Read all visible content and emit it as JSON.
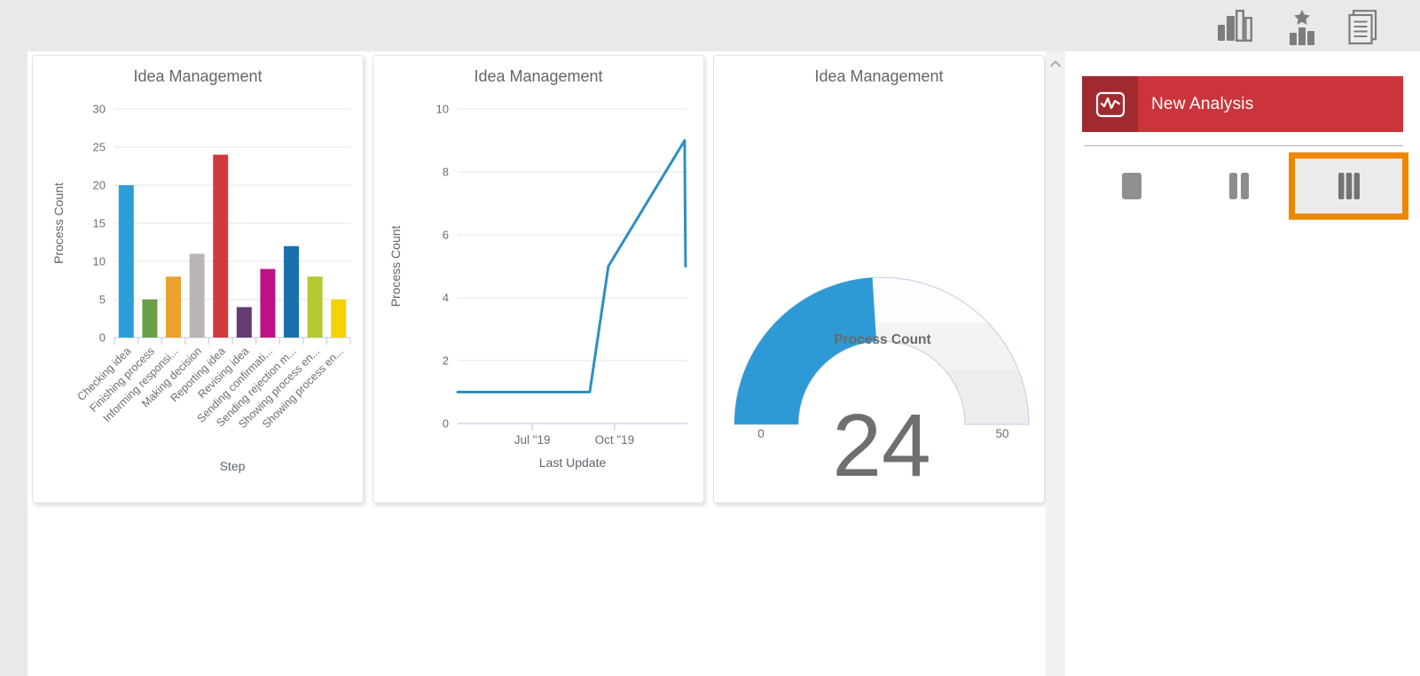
{
  "header": {
    "toolbar_icons": [
      {
        "name": "chart-columns-icon"
      },
      {
        "name": "top-rated-chart-icon"
      },
      {
        "name": "report-document-icon"
      }
    ]
  },
  "panel": {
    "new_analysis_label": "New Analysis",
    "layout_options": [
      {
        "name": "one-column",
        "selected": false
      },
      {
        "name": "two-columns",
        "selected": false
      },
      {
        "name": "three-columns",
        "selected": true
      }
    ]
  },
  "colors": {
    "page_bg": "#e9e9e9",
    "panel_bg": "#ffffff",
    "accent_red": "#cb343b",
    "accent_red_dark": "#a12a30",
    "selected_orange": "#ee8700",
    "grid": "#e5e5e5",
    "axis": "#c9cfe4",
    "tick_text": "#6e6e6e",
    "axis_title_text": "#5a6670",
    "gauge_ring": "#c9d2e8",
    "gauge_value_text": "#6f6f6f",
    "title_text": "#666666"
  },
  "chart_data": [
    {
      "type": "bar",
      "title": "Idea Management",
      "xlabel": "Step",
      "ylabel": "Process Count",
      "categories": [
        "Checking idea",
        "Finishing process",
        "Informing responsi...",
        "Making decision",
        "Reporting idea",
        "Revising idea",
        "Sending confirmati...",
        "Sending rejection m...",
        "Showing process en...",
        "Showing process en..."
      ],
      "values": [
        20,
        5,
        8,
        11,
        24,
        4,
        9,
        12,
        8,
        5
      ],
      "colors": [
        "#2d9fd8",
        "#68a145",
        "#eaa12e",
        "#bab6b7",
        "#d23b3d",
        "#653b72",
        "#bd1286",
        "#1a70ad",
        "#b4c834",
        "#f8d200"
      ],
      "ylim": [
        0,
        30
      ],
      "yticks": [
        0,
        5,
        10,
        15,
        20,
        25,
        30
      ],
      "grid": true,
      "legend": false
    },
    {
      "type": "line",
      "title": "Idea Management",
      "xlabel": "Last Update",
      "ylabel": "Process Count",
      "color": "#2d8fc3",
      "ylim": [
        0,
        10
      ],
      "yticks": [
        0,
        2,
        4,
        6,
        8,
        10
      ],
      "x_ticks": [
        {
          "label": "Jul \"19",
          "frac": 0.325
        },
        {
          "label": "Oct \"19",
          "frac": 0.683
        }
      ],
      "points": [
        [
          0,
          1
        ],
        [
          0.575,
          1
        ],
        [
          0.656,
          5
        ],
        [
          0.988,
          9
        ],
        [
          0.992,
          5
        ]
      ],
      "grid": true,
      "legend": false
    },
    {
      "type": "gauge",
      "title": "Idea Management",
      "label": "Process Count",
      "value": 24,
      "min": 0,
      "max": 50,
      "color": "#2e9ad5"
    }
  ]
}
